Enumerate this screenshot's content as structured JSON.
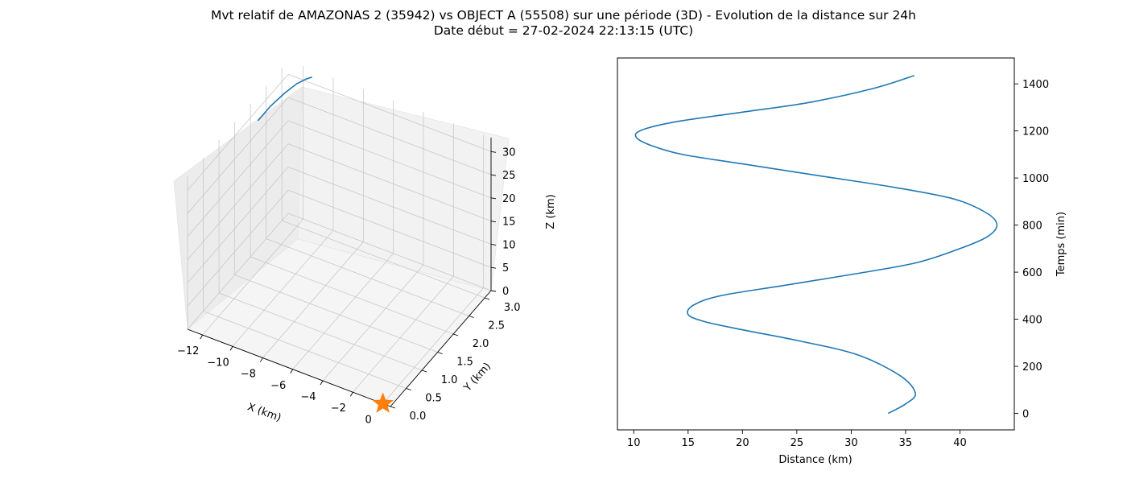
{
  "figure": {
    "title_line1": "Mvt relatif de AMAZONAS 2 (35942) vs OBJECT A (55508) sur une période (3D) - Evolution de la distance sur 24h",
    "title_line2": "Date début = 27-02-2024 22:13:15 (UTC)"
  },
  "colors": {
    "line": "#1f77b4",
    "marker": "#ff7f0e",
    "pane": "#f2f2f2",
    "grid": "#c8c8c8"
  },
  "chart_data": [
    {
      "type": "line3d",
      "xlabel": "X (km)",
      "ylabel": "Y (km)",
      "zlabel": "Z (km)",
      "x_ticks": [
        "−12",
        "−10",
        "−8",
        "−6",
        "−4",
        "−2",
        "0"
      ],
      "y_ticks": [
        "0.0",
        "0.5",
        "1.0",
        "1.5",
        "2.0",
        "2.5",
        "3.0"
      ],
      "z_ticks": [
        "0",
        "5",
        "10",
        "15",
        "20",
        "25",
        "30"
      ],
      "xlim": [
        -13,
        0.5
      ],
      "ylim": [
        0,
        3.2
      ],
      "zlim": [
        0,
        33
      ],
      "grid": true,
      "trajectory": {
        "x": [
          -12.5,
          -12.3,
          -12.0,
          -11.7,
          -11.4,
          -11.2
        ],
        "y": [
          2.0,
          2.3,
          2.6,
          2.85,
          3.0,
          3.1
        ],
        "z": [
          30.0,
          31.0,
          31.8,
          32.3,
          32.5,
          32.4
        ]
      },
      "marker": {
        "shape": "star",
        "x": 0.0,
        "y": 0.0,
        "z": 0.0
      }
    },
    {
      "type": "line",
      "xlabel": "Distance (km)",
      "ylabel": "Temps (min)",
      "xlim": [
        8.5,
        45.0
      ],
      "ylim": [
        -70,
        1510
      ],
      "x_ticks": [
        10,
        15,
        20,
        25,
        30,
        35,
        40
      ],
      "y_ticks": [
        0,
        200,
        400,
        600,
        800,
        1000,
        1200,
        1400
      ],
      "grid": false,
      "series": [
        {
          "x": [
            33.4,
            35.0,
            35.9,
            34.5,
            30.5,
            25.0,
            20.0,
            16.5,
            15.0,
            15.5,
            18.0,
            24.0,
            30.0,
            36.0,
            40.0,
            42.5,
            43.4,
            42.5,
            39.5,
            34.0,
            27.0,
            20.0,
            14.5,
            11.5,
            10.2,
            10.8,
            14.0,
            20.0,
            26.0,
            32.0,
            35.8
          ],
          "y": [
            0,
            40,
            85,
            160,
            250,
            310,
            355,
            390,
            420,
            460,
            500,
            545,
            590,
            640,
            700,
            750,
            800,
            850,
            910,
            960,
            1010,
            1060,
            1100,
            1140,
            1175,
            1205,
            1240,
            1280,
            1320,
            1380,
            1435
          ]
        }
      ]
    }
  ]
}
